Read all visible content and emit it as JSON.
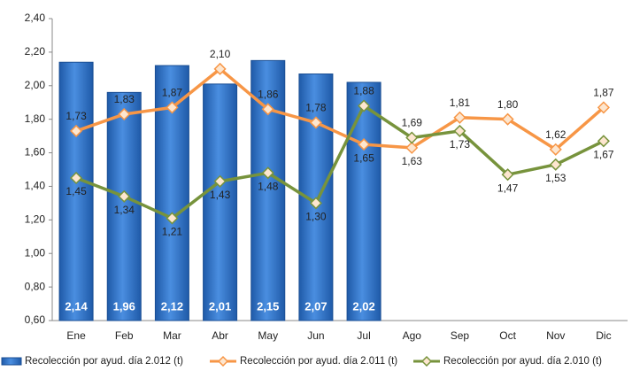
{
  "chart_data": {
    "type": "combo",
    "categories": [
      "Ene",
      "Feb",
      "Mar",
      "Abr",
      "May",
      "Jun",
      "Jul",
      "Ago",
      "Sep",
      "Oct",
      "Nov",
      "Dic"
    ],
    "ylim": [
      0.6,
      2.4
    ],
    "yticks": [
      {
        "value": 0.6,
        "label": "0,60"
      },
      {
        "value": 0.8,
        "label": "0,80"
      },
      {
        "value": 1.0,
        "label": "1,00"
      },
      {
        "value": 1.2,
        "label": "1,20"
      },
      {
        "value": 1.4,
        "label": "1,40"
      },
      {
        "value": 1.6,
        "label": "1,60"
      },
      {
        "value": 1.8,
        "label": "1,80"
      },
      {
        "value": 2.0,
        "label": "2,00"
      },
      {
        "value": 2.2,
        "label": "2,20"
      },
      {
        "value": 2.4,
        "label": "2,40"
      }
    ],
    "grid": false,
    "legend": "bottom",
    "series": [
      {
        "name": "Recolección por ayud. día 2.012 (t)",
        "type": "bar",
        "color": "#2f6fc2",
        "values": [
          2.14,
          1.96,
          2.12,
          2.01,
          2.15,
          2.07,
          2.02,
          null,
          null,
          null,
          null,
          null
        ],
        "value_labels": [
          "2,14",
          "1,96",
          "2,12",
          "2,01",
          "2,15",
          "2,07",
          "2,02",
          null,
          null,
          null,
          null,
          null
        ]
      },
      {
        "name": "Recolección por ayud. día 2.011 (t)",
        "type": "line",
        "color": "#f79646",
        "values": [
          1.73,
          1.83,
          1.87,
          2.1,
          1.86,
          1.78,
          1.65,
          1.63,
          1.81,
          1.8,
          1.62,
          1.87
        ],
        "value_labels": [
          "1,73",
          "1,83",
          "1,87",
          "2,10",
          "1,86",
          "1,78",
          "1,65",
          "1,63",
          "1,81",
          "1,80",
          "1,62",
          "1,87"
        ]
      },
      {
        "name": "Recolección por ayud. día 2.010 (t)",
        "type": "line",
        "color": "#77933c",
        "values": [
          1.45,
          1.34,
          1.21,
          1.43,
          1.48,
          1.3,
          1.88,
          1.69,
          1.73,
          1.47,
          1.53,
          1.67
        ],
        "value_labels": [
          "1,45",
          "1,34",
          "1,21",
          "1,43",
          "1,48",
          "1,30",
          "1,88",
          "1,69",
          "1,73",
          "1,47",
          "1,53",
          "1,67"
        ]
      }
    ]
  }
}
